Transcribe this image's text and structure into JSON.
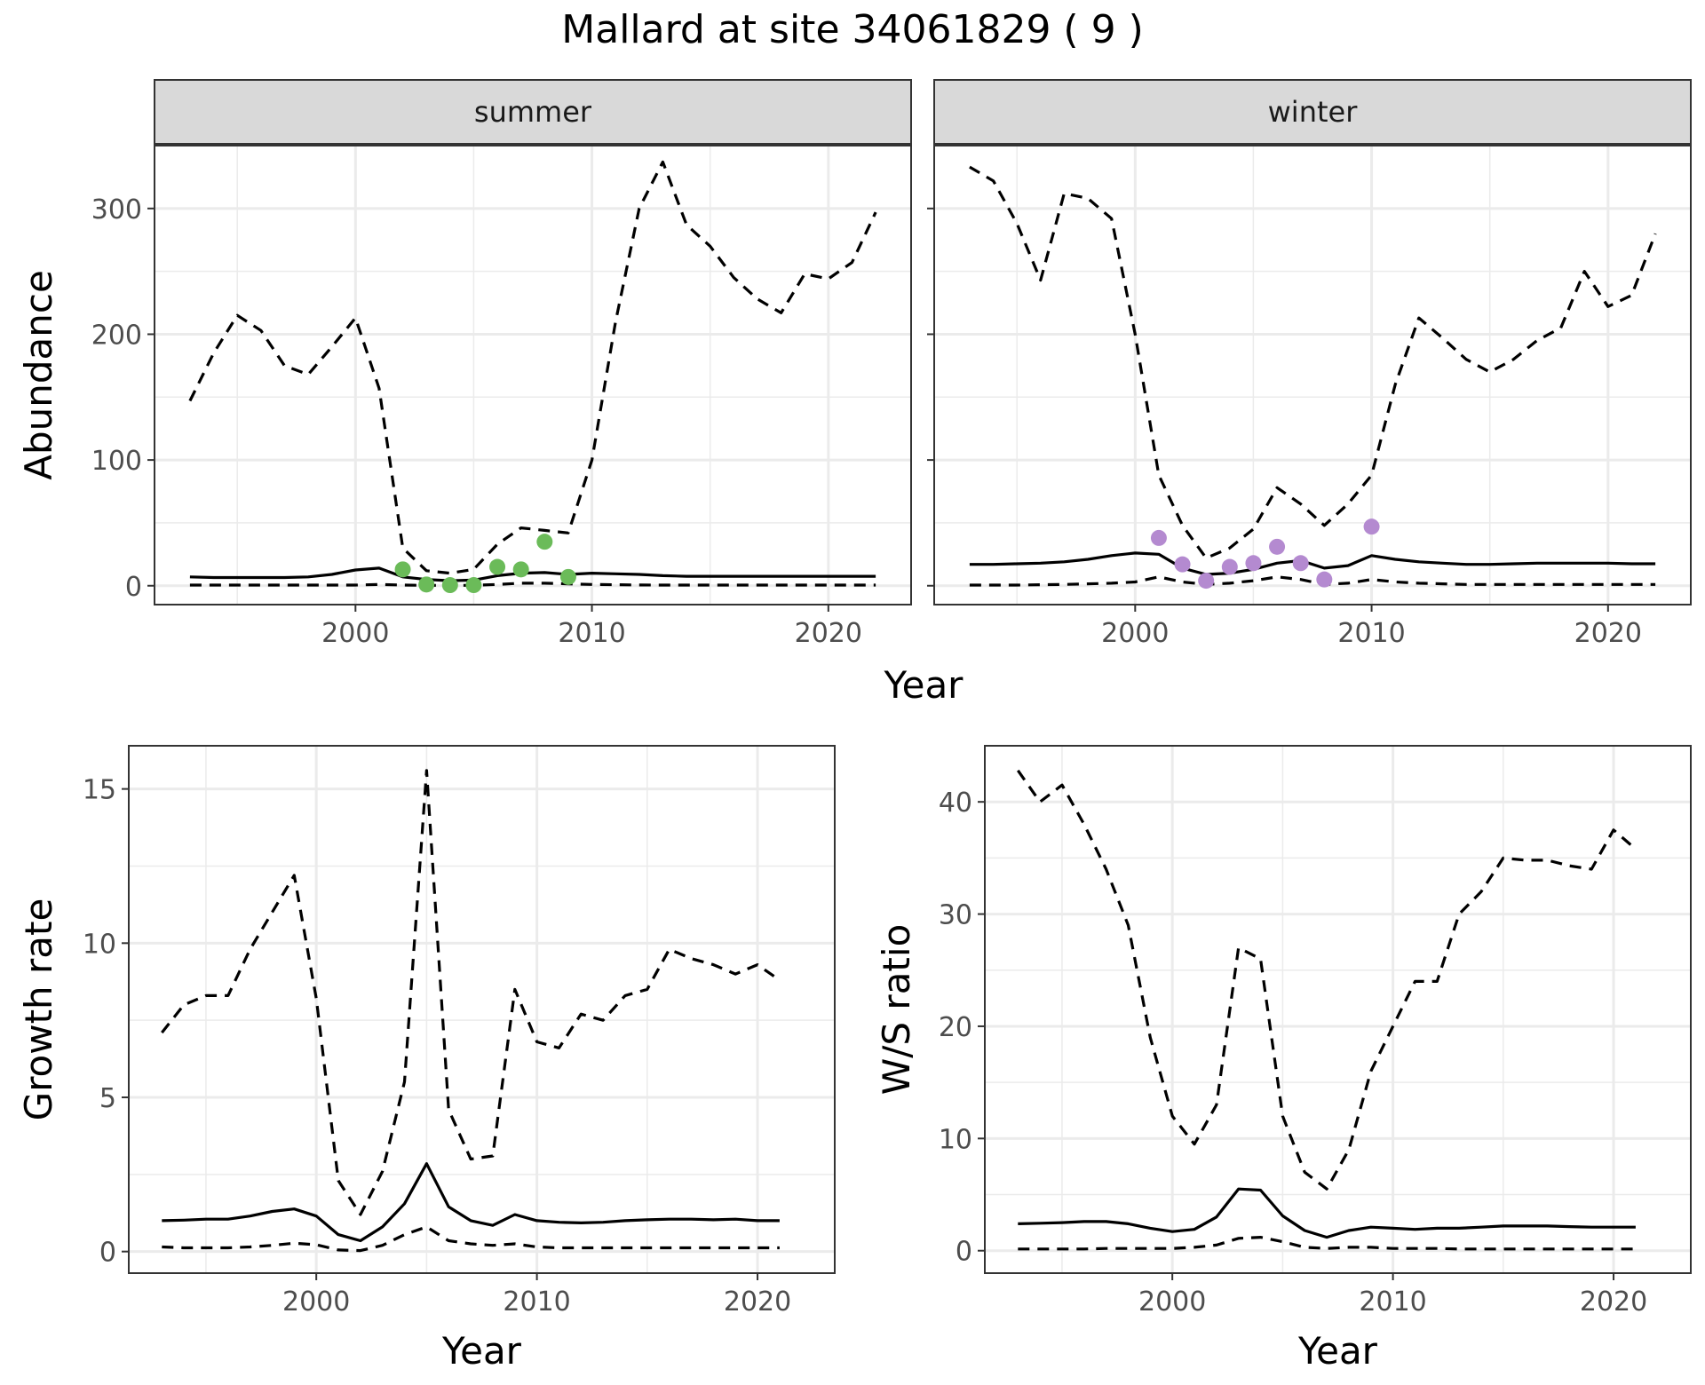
{
  "figure": {
    "title": "Mallard at site 34061829 ( 9 )",
    "top_xlabel": "Year"
  },
  "colors": {
    "summer_points": "#6bbb59",
    "winter_points": "#b48ad0",
    "lines": "#000000",
    "strip_fill": "#d9d9d9",
    "grid": "#ebebeb"
  },
  "chart_data": [
    {
      "type": "line",
      "facet": "summer",
      "ylabel": "Abundance",
      "xlim": [
        1991.5,
        2023.5
      ],
      "ylim": [
        -15,
        350
      ],
      "xticks": [
        2000,
        2010,
        2020
      ],
      "yticks": [
        0,
        100,
        200,
        300
      ],
      "show_y_tick_labels": true,
      "grid": true,
      "series": [
        {
          "style": "solid",
          "x": [
            1993,
            1994,
            1995,
            1996,
            1997,
            1998,
            1999,
            2000,
            2001,
            2002,
            2003,
            2004,
            2005,
            2006,
            2007,
            2008,
            2009,
            2010,
            2011,
            2012,
            2013,
            2014,
            2015,
            2016,
            2017,
            2018,
            2019,
            2020,
            2021,
            2022
          ],
          "y": [
            7,
            6.5,
            6.5,
            6.5,
            6.5,
            7,
            9,
            12.5,
            14,
            7,
            5,
            4,
            4.5,
            8,
            10,
            10.5,
            9,
            10,
            9.5,
            9,
            8,
            7.5,
            7.5,
            7.5,
            7.5,
            7.5,
            7.5,
            7.5,
            7.5,
            7.5
          ]
        },
        {
          "style": "dashed",
          "x": [
            1993,
            1994,
            1995,
            1996,
            1997,
            1998,
            1999,
            2000,
            2001,
            2002,
            2003,
            2004,
            2005,
            2006,
            2007,
            2008,
            2009,
            2010,
            2011,
            2012,
            2013,
            2014,
            2015,
            2016,
            2017,
            2018,
            2019,
            2020,
            2021,
            2022
          ],
          "y": [
            147,
            185,
            215,
            203,
            175,
            168,
            190,
            213,
            157,
            30,
            12,
            10,
            13,
            33,
            46,
            44,
            42,
            100,
            210,
            300,
            337,
            287,
            270,
            245,
            228,
            217,
            248,
            244,
            257,
            297
          ]
        },
        {
          "style": "dashed",
          "x": [
            1993,
            1994,
            1995,
            1996,
            1997,
            1998,
            1999,
            2000,
            2001,
            2002,
            2003,
            2004,
            2005,
            2006,
            2007,
            2008,
            2009,
            2010,
            2011,
            2012,
            2013,
            2014,
            2015,
            2016,
            2017,
            2018,
            2019,
            2020,
            2021,
            2022
          ],
          "y": [
            0.5,
            0.5,
            0.5,
            0.5,
            0.5,
            0.5,
            0.5,
            0.5,
            1,
            0.5,
            0.3,
            0.3,
            0.3,
            1,
            2,
            2,
            1.5,
            1,
            0.8,
            0.6,
            0.5,
            0.5,
            0.5,
            0.5,
            0.5,
            0.5,
            0.5,
            0.5,
            0.5,
            0.5
          ]
        }
      ],
      "points": {
        "x": [
          2002,
          2003,
          2004,
          2005,
          2006,
          2007,
          2008,
          2009
        ],
        "y": [
          13,
          1,
          0.5,
          0.5,
          15,
          13,
          35,
          7
        ]
      }
    },
    {
      "type": "line",
      "facet": "winter",
      "ylabel": "",
      "xlim": [
        1991.5,
        2023.5
      ],
      "ylim": [
        -15,
        350
      ],
      "xticks": [
        2000,
        2010,
        2020
      ],
      "yticks": [
        0,
        100,
        200,
        300
      ],
      "show_y_tick_labels": false,
      "grid": true,
      "series": [
        {
          "style": "solid",
          "x": [
            1993,
            1994,
            1995,
            1996,
            1997,
            1998,
            1999,
            2000,
            2001,
            2002,
            2003,
            2004,
            2005,
            2006,
            2007,
            2008,
            2009,
            2010,
            2011,
            2012,
            2013,
            2014,
            2015,
            2016,
            2017,
            2018,
            2019,
            2020,
            2021,
            2022
          ],
          "y": [
            17,
            17,
            17.5,
            18,
            19,
            21,
            24,
            26,
            25,
            14,
            9,
            10,
            13,
            18,
            20,
            14,
            16,
            24,
            21,
            19,
            18,
            17,
            17,
            17.5,
            18,
            18,
            18,
            18,
            17.5,
            17.5
          ]
        },
        {
          "style": "dashed",
          "x": [
            1993,
            1994,
            1995,
            1996,
            1997,
            1998,
            1999,
            2000,
            2001,
            2002,
            2003,
            2004,
            2005,
            2006,
            2007,
            2008,
            2009,
            2010,
            2011,
            2012,
            2013,
            2014,
            2015,
            2016,
            2017,
            2018,
            2019,
            2020,
            2021,
            2022
          ],
          "y": [
            333,
            322,
            288,
            243,
            312,
            308,
            292,
            200,
            88,
            48,
            22,
            30,
            45,
            78,
            65,
            48,
            65,
            88,
            160,
            213,
            197,
            180,
            170,
            180,
            195,
            205,
            250,
            222,
            231,
            280
          ]
        },
        {
          "style": "dashed",
          "x": [
            1993,
            1994,
            1995,
            1996,
            1997,
            1998,
            1999,
            2000,
            2001,
            2002,
            2003,
            2004,
            2005,
            2006,
            2007,
            2008,
            2009,
            2010,
            2011,
            2012,
            2013,
            2014,
            2015,
            2016,
            2017,
            2018,
            2019,
            2020,
            2021,
            2022
          ],
          "y": [
            0.5,
            0.5,
            0.5,
            0.8,
            1,
            1.5,
            2,
            3,
            7,
            3,
            1,
            2,
            4,
            7,
            5,
            1,
            2,
            5,
            3,
            2,
            1.5,
            1,
            1,
            1,
            1,
            1,
            1,
            1,
            1,
            1
          ]
        }
      ],
      "points": {
        "x": [
          2001,
          2002,
          2003,
          2004,
          2005,
          2006,
          2007,
          2008,
          2010
        ],
        "y": [
          38,
          17,
          4,
          15,
          18,
          31,
          18,
          5,
          47
        ]
      }
    },
    {
      "type": "line",
      "facet": "",
      "ylabel": "Growth rate",
      "xlabel": "Year",
      "xlim": [
        1991.5,
        2023.5
      ],
      "ylim": [
        -0.7,
        16.4
      ],
      "xticks": [
        2000,
        2010,
        2020
      ],
      "yticks": [
        0,
        5,
        10,
        15
      ],
      "show_y_tick_labels": true,
      "grid": true,
      "series": [
        {
          "style": "solid",
          "x": [
            1993,
            1994,
            1995,
            1996,
            1997,
            1998,
            1999,
            2000,
            2001,
            2002,
            2003,
            2004,
            2005,
            2006,
            2007,
            2008,
            2009,
            2010,
            2011,
            2012,
            2013,
            2014,
            2015,
            2016,
            2017,
            2018,
            2019,
            2020,
            2021
          ],
          "y": [
            1,
            1.02,
            1.05,
            1.05,
            1.15,
            1.3,
            1.38,
            1.15,
            0.55,
            0.35,
            0.8,
            1.55,
            2.85,
            1.45,
            1,
            0.85,
            1.2,
            1,
            0.95,
            0.93,
            0.95,
            1,
            1.03,
            1.05,
            1.05,
            1.03,
            1.05,
            1,
            1
          ]
        },
        {
          "style": "dashed",
          "x": [
            1993,
            1994,
            1995,
            1996,
            1997,
            1998,
            1999,
            2000,
            2001,
            2002,
            2003,
            2004,
            2005,
            2006,
            2007,
            2008,
            2009,
            2010,
            2011,
            2012,
            2013,
            2014,
            2015,
            2016,
            2017,
            2018,
            2019,
            2020,
            2021
          ],
          "y": [
            7.1,
            8,
            8.3,
            8.3,
            9.8,
            11,
            12.2,
            8.2,
            2.3,
            1.2,
            2.6,
            5.5,
            15.6,
            4.6,
            3,
            3.1,
            8.5,
            6.8,
            6.6,
            7.7,
            7.5,
            8.3,
            8.5,
            9.8,
            9.5,
            9.3,
            9,
            9.3,
            8.8
          ]
        },
        {
          "style": "dashed",
          "x": [
            1993,
            1994,
            1995,
            1996,
            1997,
            1998,
            1999,
            2000,
            2001,
            2002,
            2003,
            2004,
            2005,
            2006,
            2007,
            2008,
            2009,
            2010,
            2011,
            2012,
            2013,
            2014,
            2015,
            2016,
            2017,
            2018,
            2019,
            2020,
            2021
          ],
          "y": [
            0.15,
            0.12,
            0.12,
            0.12,
            0.15,
            0.2,
            0.27,
            0.22,
            0.05,
            0.03,
            0.2,
            0.55,
            0.8,
            0.35,
            0.25,
            0.2,
            0.25,
            0.15,
            0.12,
            0.12,
            0.12,
            0.12,
            0.12,
            0.12,
            0.12,
            0.12,
            0.12,
            0.12,
            0.12
          ]
        }
      ]
    },
    {
      "type": "line",
      "facet": "",
      "ylabel": "W/S ratio",
      "xlabel": "Year",
      "xlim": [
        1991.5,
        2023.5
      ],
      "ylim": [
        -2,
        45
      ],
      "xticks": [
        2000,
        2010,
        2020
      ],
      "yticks": [
        0,
        10,
        20,
        30,
        40
      ],
      "show_y_tick_labels": true,
      "grid": true,
      "series": [
        {
          "style": "solid",
          "x": [
            1993,
            1994,
            1995,
            1996,
            1997,
            1998,
            1999,
            2000,
            2001,
            2002,
            2003,
            2004,
            2005,
            2006,
            2007,
            2008,
            2009,
            2010,
            2011,
            2012,
            2013,
            2014,
            2015,
            2016,
            2017,
            2018,
            2019,
            2020,
            2021
          ],
          "y": [
            2.4,
            2.45,
            2.5,
            2.6,
            2.6,
            2.4,
            2,
            1.7,
            1.9,
            3,
            5.5,
            5.4,
            3.1,
            1.8,
            1.2,
            1.8,
            2.1,
            2,
            1.9,
            2,
            2,
            2.1,
            2.2,
            2.2,
            2.2,
            2.15,
            2.1,
            2.1,
            2.1
          ]
        },
        {
          "style": "dashed",
          "x": [
            1993,
            1994,
            1995,
            1996,
            1997,
            1998,
            1999,
            2000,
            2001,
            2002,
            2003,
            2004,
            2005,
            2006,
            2007,
            2008,
            2009,
            2010,
            2011,
            2012,
            2013,
            2014,
            2015,
            2016,
            2017,
            2018,
            2019,
            2020,
            2021
          ],
          "y": [
            42.8,
            40,
            41.5,
            38,
            34,
            29,
            19,
            12,
            9.5,
            13,
            27,
            26,
            12,
            7,
            5.5,
            9,
            16,
            20,
            24,
            24,
            30,
            32,
            35,
            34.8,
            34.8,
            34.3,
            34,
            37.5,
            35.8
          ]
        },
        {
          "style": "dashed",
          "x": [
            1993,
            1994,
            1995,
            1996,
            1997,
            1998,
            1999,
            2000,
            2001,
            2002,
            2003,
            2004,
            2005,
            2006,
            2007,
            2008,
            2009,
            2010,
            2011,
            2012,
            2013,
            2014,
            2015,
            2016,
            2017,
            2018,
            2019,
            2020,
            2021
          ],
          "y": [
            0.15,
            0.15,
            0.15,
            0.15,
            0.2,
            0.2,
            0.2,
            0.2,
            0.3,
            0.5,
            1.1,
            1.2,
            0.8,
            0.3,
            0.2,
            0.3,
            0.3,
            0.2,
            0.2,
            0.2,
            0.15,
            0.15,
            0.15,
            0.15,
            0.15,
            0.15,
            0.15,
            0.15,
            0.15
          ]
        }
      ]
    }
  ]
}
